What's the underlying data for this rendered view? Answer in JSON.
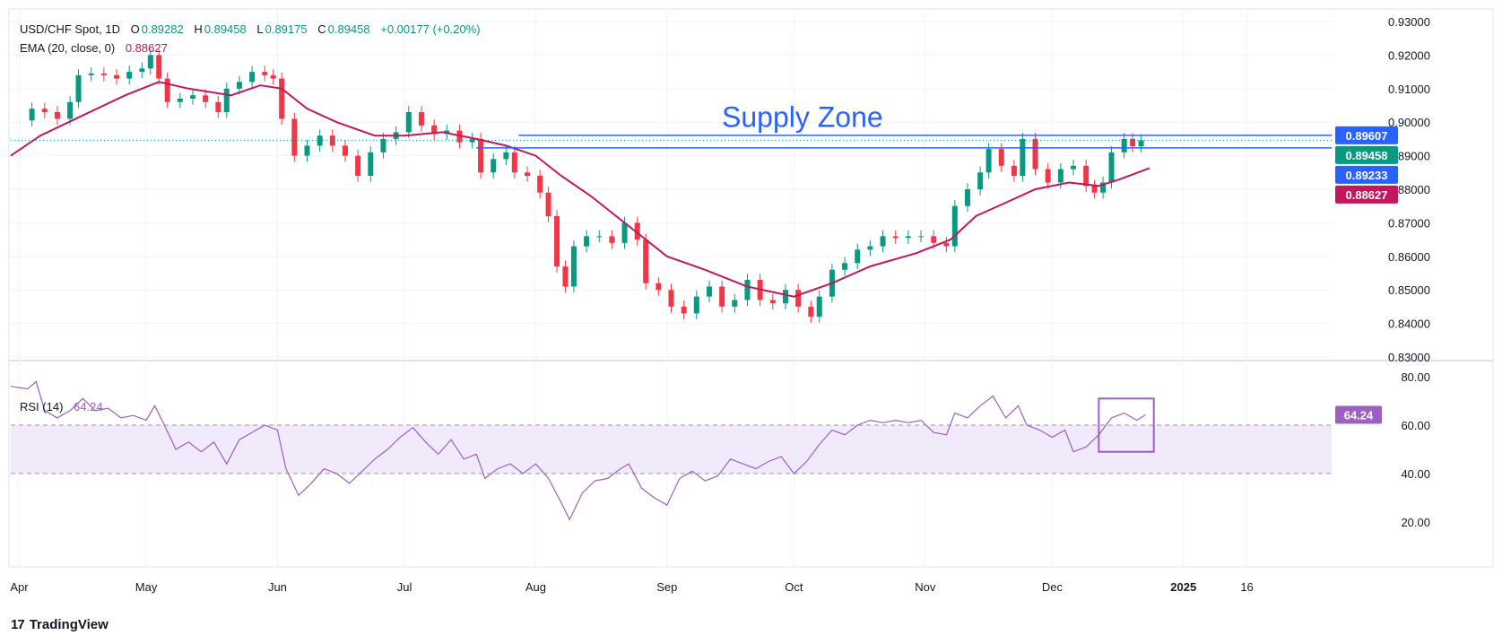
{
  "header": {
    "symbol": "USD/CHF Spot, 1D",
    "open_label": "O",
    "open": "0.89282",
    "high_label": "H",
    "high": "0.89458",
    "low_label": "L",
    "low": "0.89175",
    "close_label": "C",
    "close": "0.89458",
    "change": "+0.00177 (+0.20%)",
    "ema_label": "EMA (20, close, 0)",
    "ema_value": "0.88627",
    "rsi_label": "RSI (14)",
    "rsi_value": "64.24"
  },
  "branding": {
    "name": "TradingView"
  },
  "colors": {
    "up": "#089981",
    "down": "#f23645",
    "ema": "#c2185b",
    "rsi": "#9c5fc4",
    "supply": "#2962ff",
    "rsi_band": "#f0eafa"
  },
  "chart_data": {
    "type": "line",
    "annotation": "Supply Zone",
    "price_axis": {
      "ticks": [
        "0.93000",
        "0.92000",
        "0.91000",
        "0.90000",
        "0.89000",
        "0.88000",
        "0.87000",
        "0.86000",
        "0.85000",
        "0.84000",
        "0.83000"
      ],
      "ylim": [
        0.83,
        0.93
      ]
    },
    "x_axis": {
      "labels": [
        "Apr",
        "May",
        "Jun",
        "Jul",
        "Aug",
        "Sep",
        "Oct",
        "Nov",
        "Dec",
        "2025",
        "16"
      ],
      "label_days": [
        0,
        30,
        61,
        91,
        122,
        153,
        183,
        214,
        244,
        275,
        290
      ],
      "xlim": [
        -2,
        310
      ]
    },
    "price_tags": [
      {
        "value": 0.89607,
        "text": "0.89607",
        "color": "#2962ff"
      },
      {
        "value": 0.89458,
        "text": "0.89458",
        "color": "#089981"
      },
      {
        "value": 0.89233,
        "text": "0.89233",
        "color": "#2962ff"
      },
      {
        "value": 0.88627,
        "text": "0.88627",
        "color": "#c2185b"
      }
    ],
    "supply_lines": [
      {
        "value": 0.89607,
        "from_day": 118,
        "to_day": 310
      },
      {
        "value": 0.89233,
        "from_day": 108,
        "to_day": 310
      }
    ],
    "close_series": [
      {
        "day": 0,
        "value": 0.9005
      },
      {
        "day": 3,
        "value": 0.904
      },
      {
        "day": 6,
        "value": 0.903
      },
      {
        "day": 9,
        "value": 0.901
      },
      {
        "day": 12,
        "value": 0.906
      },
      {
        "day": 14,
        "value": 0.914
      },
      {
        "day": 17,
        "value": 0.9145
      },
      {
        "day": 20,
        "value": 0.914
      },
      {
        "day": 23,
        "value": 0.913
      },
      {
        "day": 26,
        "value": 0.915
      },
      {
        "day": 29,
        "value": 0.916
      },
      {
        "day": 31,
        "value": 0.92
      },
      {
        "day": 33,
        "value": 0.913
      },
      {
        "day": 35,
        "value": 0.906
      },
      {
        "day": 38,
        "value": 0.907
      },
      {
        "day": 41,
        "value": 0.908
      },
      {
        "day": 44,
        "value": 0.906
      },
      {
        "day": 47,
        "value": 0.903
      },
      {
        "day": 49,
        "value": 0.91
      },
      {
        "day": 52,
        "value": 0.912
      },
      {
        "day": 55,
        "value": 0.915
      },
      {
        "day": 58,
        "value": 0.914
      },
      {
        "day": 60,
        "value": 0.913
      },
      {
        "day": 62,
        "value": 0.901
      },
      {
        "day": 65,
        "value": 0.89
      },
      {
        "day": 68,
        "value": 0.893
      },
      {
        "day": 71,
        "value": 0.896
      },
      {
        "day": 74,
        "value": 0.893
      },
      {
        "day": 77,
        "value": 0.89
      },
      {
        "day": 80,
        "value": 0.884
      },
      {
        "day": 83,
        "value": 0.891
      },
      {
        "day": 86,
        "value": 0.895
      },
      {
        "day": 89,
        "value": 0.897
      },
      {
        "day": 92,
        "value": 0.903
      },
      {
        "day": 95,
        "value": 0.899
      },
      {
        "day": 98,
        "value": 0.8965
      },
      {
        "day": 101,
        "value": 0.8975
      },
      {
        "day": 104,
        "value": 0.894
      },
      {
        "day": 107,
        "value": 0.895
      },
      {
        "day": 109,
        "value": 0.885
      },
      {
        "day": 112,
        "value": 0.889
      },
      {
        "day": 115,
        "value": 0.891
      },
      {
        "day": 117,
        "value": 0.885
      },
      {
        "day": 120,
        "value": 0.884
      },
      {
        "day": 123,
        "value": 0.879
      },
      {
        "day": 125,
        "value": 0.872
      },
      {
        "day": 127,
        "value": 0.857
      },
      {
        "day": 129,
        "value": 0.851
      },
      {
        "day": 131,
        "value": 0.863
      },
      {
        "day": 134,
        "value": 0.866
      },
      {
        "day": 137,
        "value": 0.866
      },
      {
        "day": 140,
        "value": 0.864
      },
      {
        "day": 143,
        "value": 0.87
      },
      {
        "day": 146,
        "value": 0.865
      },
      {
        "day": 148,
        "value": 0.852
      },
      {
        "day": 151,
        "value": 0.85
      },
      {
        "day": 154,
        "value": 0.845
      },
      {
        "day": 157,
        "value": 0.843
      },
      {
        "day": 160,
        "value": 0.848
      },
      {
        "day": 163,
        "value": 0.851
      },
      {
        "day": 166,
        "value": 0.845
      },
      {
        "day": 169,
        "value": 0.847
      },
      {
        "day": 172,
        "value": 0.853
      },
      {
        "day": 175,
        "value": 0.847
      },
      {
        "day": 178,
        "value": 0.846
      },
      {
        "day": 181,
        "value": 0.85
      },
      {
        "day": 184,
        "value": 0.845
      },
      {
        "day": 187,
        "value": 0.842
      },
      {
        "day": 189,
        "value": 0.848
      },
      {
        "day": 192,
        "value": 0.856
      },
      {
        "day": 195,
        "value": 0.858
      },
      {
        "day": 198,
        "value": 0.862
      },
      {
        "day": 201,
        "value": 0.863
      },
      {
        "day": 204,
        "value": 0.866
      },
      {
        "day": 207,
        "value": 0.8655
      },
      {
        "day": 210,
        "value": 0.866
      },
      {
        "day": 213,
        "value": 0.866
      },
      {
        "day": 216,
        "value": 0.864
      },
      {
        "day": 219,
        "value": 0.863
      },
      {
        "day": 221,
        "value": 0.875
      },
      {
        "day": 224,
        "value": 0.88
      },
      {
        "day": 227,
        "value": 0.885
      },
      {
        "day": 229,
        "value": 0.892
      },
      {
        "day": 232,
        "value": 0.887
      },
      {
        "day": 235,
        "value": 0.884
      },
      {
        "day": 237,
        "value": 0.895
      },
      {
        "day": 240,
        "value": 0.886
      },
      {
        "day": 243,
        "value": 0.882
      },
      {
        "day": 246,
        "value": 0.886
      },
      {
        "day": 249,
        "value": 0.887
      },
      {
        "day": 252,
        "value": 0.881
      },
      {
        "day": 254,
        "value": 0.879
      },
      {
        "day": 256,
        "value": 0.882
      },
      {
        "day": 258,
        "value": 0.891
      },
      {
        "day": 261,
        "value": 0.895
      },
      {
        "day": 263,
        "value": 0.8928
      },
      {
        "day": 265,
        "value": 0.8946
      }
    ],
    "ema_series": [
      {
        "day": -2,
        "value": 0.89
      },
      {
        "day": 5,
        "value": 0.896
      },
      {
        "day": 15,
        "value": 0.902
      },
      {
        "day": 25,
        "value": 0.908
      },
      {
        "day": 33,
        "value": 0.912
      },
      {
        "day": 40,
        "value": 0.91
      },
      {
        "day": 50,
        "value": 0.908
      },
      {
        "day": 57,
        "value": 0.911
      },
      {
        "day": 62,
        "value": 0.91
      },
      {
        "day": 68,
        "value": 0.904
      },
      {
        "day": 75,
        "value": 0.9
      },
      {
        "day": 84,
        "value": 0.896
      },
      {
        "day": 91,
        "value": 0.896
      },
      {
        "day": 100,
        "value": 0.897
      },
      {
        "day": 108,
        "value": 0.895
      },
      {
        "day": 115,
        "value": 0.893
      },
      {
        "day": 122,
        "value": 0.89
      },
      {
        "day": 128,
        "value": 0.884
      },
      {
        "day": 135,
        "value": 0.878
      },
      {
        "day": 145,
        "value": 0.868
      },
      {
        "day": 153,
        "value": 0.86
      },
      {
        "day": 162,
        "value": 0.856
      },
      {
        "day": 172,
        "value": 0.851
      },
      {
        "day": 183,
        "value": 0.848
      },
      {
        "day": 192,
        "value": 0.852
      },
      {
        "day": 201,
        "value": 0.857
      },
      {
        "day": 212,
        "value": 0.861
      },
      {
        "day": 220,
        "value": 0.865
      },
      {
        "day": 226,
        "value": 0.872
      },
      {
        "day": 233,
        "value": 0.876
      },
      {
        "day": 240,
        "value": 0.88
      },
      {
        "day": 248,
        "value": 0.882
      },
      {
        "day": 255,
        "value": 0.881
      },
      {
        "day": 260,
        "value": 0.883
      },
      {
        "day": 267,
        "value": 0.8863
      }
    ],
    "rsi": {
      "ticks": [
        "80.00",
        "60.00",
        "40.00",
        "20.00"
      ],
      "ylim": [
        13,
        83
      ],
      "band": [
        40,
        60
      ],
      "current_value": 64.24,
      "current_text": "64.24",
      "highlight_box": {
        "day_from": 255,
        "day_to": 268,
        "value_from": 49,
        "value_to": 71
      },
      "series": [
        {
          "day": -2,
          "value": 76
        },
        {
          "day": 2,
          "value": 75
        },
        {
          "day": 4,
          "value": 78
        },
        {
          "day": 6,
          "value": 66
        },
        {
          "day": 9,
          "value": 63
        },
        {
          "day": 12,
          "value": 66
        },
        {
          "day": 15,
          "value": 71
        },
        {
          "day": 18,
          "value": 66
        },
        {
          "day": 21,
          "value": 67
        },
        {
          "day": 24,
          "value": 63
        },
        {
          "day": 27,
          "value": 64
        },
        {
          "day": 30,
          "value": 62
        },
        {
          "day": 32,
          "value": 68
        },
        {
          "day": 34,
          "value": 61
        },
        {
          "day": 37,
          "value": 50
        },
        {
          "day": 40,
          "value": 53
        },
        {
          "day": 43,
          "value": 49
        },
        {
          "day": 46,
          "value": 53
        },
        {
          "day": 49,
          "value": 44
        },
        {
          "day": 52,
          "value": 54
        },
        {
          "day": 55,
          "value": 57
        },
        {
          "day": 58,
          "value": 60
        },
        {
          "day": 61,
          "value": 58
        },
        {
          "day": 63,
          "value": 42
        },
        {
          "day": 66,
          "value": 31
        },
        {
          "day": 69,
          "value": 36
        },
        {
          "day": 72,
          "value": 42
        },
        {
          "day": 75,
          "value": 40
        },
        {
          "day": 78,
          "value": 36
        },
        {
          "day": 81,
          "value": 41
        },
        {
          "day": 84,
          "value": 46
        },
        {
          "day": 87,
          "value": 50
        },
        {
          "day": 90,
          "value": 55
        },
        {
          "day": 93,
          "value": 59
        },
        {
          "day": 96,
          "value": 53
        },
        {
          "day": 99,
          "value": 48
        },
        {
          "day": 102,
          "value": 54
        },
        {
          "day": 105,
          "value": 46
        },
        {
          "day": 108,
          "value": 48
        },
        {
          "day": 110,
          "value": 38
        },
        {
          "day": 113,
          "value": 42
        },
        {
          "day": 116,
          "value": 44
        },
        {
          "day": 119,
          "value": 40
        },
        {
          "day": 122,
          "value": 44
        },
        {
          "day": 125,
          "value": 38
        },
        {
          "day": 128,
          "value": 28
        },
        {
          "day": 130,
          "value": 21
        },
        {
          "day": 133,
          "value": 32
        },
        {
          "day": 136,
          "value": 37
        },
        {
          "day": 139,
          "value": 38
        },
        {
          "day": 142,
          "value": 42
        },
        {
          "day": 144,
          "value": 44
        },
        {
          "day": 147,
          "value": 34
        },
        {
          "day": 150,
          "value": 30
        },
        {
          "day": 153,
          "value": 27
        },
        {
          "day": 156,
          "value": 38
        },
        {
          "day": 159,
          "value": 41
        },
        {
          "day": 162,
          "value": 37
        },
        {
          "day": 165,
          "value": 39
        },
        {
          "day": 168,
          "value": 46
        },
        {
          "day": 171,
          "value": 44
        },
        {
          "day": 174,
          "value": 42
        },
        {
          "day": 177,
          "value": 45
        },
        {
          "day": 180,
          "value": 47
        },
        {
          "day": 183,
          "value": 40
        },
        {
          "day": 186,
          "value": 45
        },
        {
          "day": 189,
          "value": 52
        },
        {
          "day": 192,
          "value": 58
        },
        {
          "day": 195,
          "value": 56
        },
        {
          "day": 198,
          "value": 60
        },
        {
          "day": 201,
          "value": 62
        },
        {
          "day": 204,
          "value": 61
        },
        {
          "day": 207,
          "value": 62
        },
        {
          "day": 210,
          "value": 61
        },
        {
          "day": 213,
          "value": 62
        },
        {
          "day": 216,
          "value": 57
        },
        {
          "day": 219,
          "value": 56
        },
        {
          "day": 221,
          "value": 65
        },
        {
          "day": 224,
          "value": 63
        },
        {
          "day": 227,
          "value": 68
        },
        {
          "day": 230,
          "value": 72
        },
        {
          "day": 233,
          "value": 63
        },
        {
          "day": 236,
          "value": 68
        },
        {
          "day": 238,
          "value": 60
        },
        {
          "day": 241,
          "value": 58
        },
        {
          "day": 244,
          "value": 55
        },
        {
          "day": 247,
          "value": 58
        },
        {
          "day": 249,
          "value": 49
        },
        {
          "day": 252,
          "value": 51
        },
        {
          "day": 255,
          "value": 56
        },
        {
          "day": 258,
          "value": 63
        },
        {
          "day": 261,
          "value": 65
        },
        {
          "day": 264,
          "value": 62
        },
        {
          "day": 266,
          "value": 64.24
        }
      ]
    }
  }
}
